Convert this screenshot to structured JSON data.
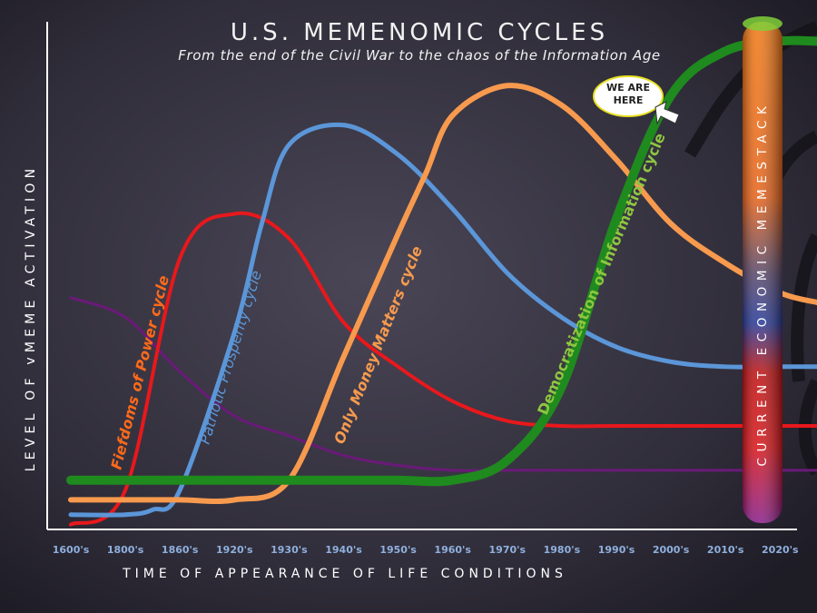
{
  "chart_data": {
    "type": "line",
    "title": "U.S. MEMENOMIC CYCLES",
    "subtitle": "From the end of the Civil War to the chaos of the Information Age",
    "xlabel": "TIME OF APPEARANCE OF LIFE CONDITIONS",
    "ylabel": "LEVEL OF vMEME ACTIVATION",
    "categories": [
      "1600's",
      "1800's",
      "1860's",
      "1920's",
      "1930's",
      "1940's",
      "1950's",
      "1960's",
      "1970's",
      "1980's",
      "1990's",
      "2000's",
      "2010's",
      "2020's"
    ],
    "ylim": [
      0,
      100
    ],
    "series": [
      {
        "name": "Fiefdoms of Power cycle",
        "color": "#e8181c",
        "x": [
          0,
          1,
          2,
          3,
          4,
          5,
          6,
          7,
          8,
          9,
          10,
          11,
          12,
          13,
          13.7
        ],
        "values": [
          1,
          8,
          55,
          64,
          59,
          42,
          33,
          26,
          22,
          21,
          21,
          21,
          21,
          21,
          21
        ]
      },
      {
        "name": "Patriotic Prosperity cycle",
        "color": "#5b96d8",
        "x": [
          0,
          1,
          1.5,
          2,
          3,
          3.5,
          4,
          5,
          6,
          7,
          8,
          9,
          10,
          11,
          12,
          13,
          13.7
        ],
        "values": [
          3,
          3,
          4,
          8,
          40,
          62,
          78,
          82,
          76,
          65,
          52,
          43,
          37,
          34,
          33,
          33,
          33
        ]
      },
      {
        "name": "Only Money Matters cycle",
        "color": "#f79a4e",
        "x": [
          0,
          1,
          2,
          3,
          4,
          5,
          6,
          6.5,
          7,
          8,
          9,
          10,
          11,
          12,
          13,
          13.7
        ],
        "values": [
          6,
          6,
          6,
          6,
          10,
          35,
          60,
          72,
          84,
          90,
          86,
          75,
          62,
          54,
          48,
          46
        ]
      },
      {
        "name": "Democratization of Information cycle",
        "color": "#1f8a1e",
        "x": [
          0,
          1,
          2,
          3,
          4,
          5,
          6,
          7,
          8,
          9,
          10,
          11,
          12,
          13,
          13.7
        ],
        "values": [
          10,
          10,
          10,
          10,
          10,
          10,
          10,
          10,
          14,
          29,
          63,
          88,
          97,
          99,
          99
        ]
      },
      {
        "name": "",
        "color": "#6a1a78",
        "x": [
          0,
          1,
          2,
          3,
          4,
          5,
          6,
          7,
          8,
          9,
          10,
          11,
          12,
          13,
          13.7
        ],
        "values": [
          47,
          43,
          32,
          23,
          19,
          15,
          13,
          12,
          12,
          12,
          12,
          12,
          12,
          12,
          12
        ]
      }
    ],
    "series_labels": [
      {
        "text": "Fiefdoms of Power cycle",
        "color": "#ff6a1a"
      },
      {
        "text": "Patriotic Prosperity cycle",
        "color": "#5b96d8"
      },
      {
        "text": "Only Money Matters cycle",
        "color": "#f79a4e"
      },
      {
        "text": "Democratization of Information cycle",
        "color": "#8ec63f"
      }
    ],
    "annotations": {
      "callout": "WE ARE HERE",
      "stack_label": "CURRENT ECONOMIC MEMESTACK"
    },
    "grid": false
  }
}
